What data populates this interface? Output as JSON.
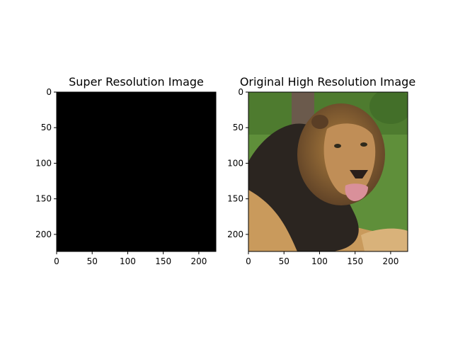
{
  "chart_data": [
    {
      "type": "heatmap",
      "title": "Super Resolution Image",
      "content": "blank",
      "image_size": [
        224,
        224
      ],
      "fill_color": "#000000",
      "xlim": [
        0,
        224
      ],
      "ylim": [
        224,
        0
      ],
      "xticks": [
        0,
        50,
        100,
        150,
        200
      ],
      "yticks": [
        0,
        50,
        100,
        150,
        200
      ],
      "xtick_labels": [
        "0",
        "50",
        "100",
        "150",
        "200"
      ],
      "ytick_labels": [
        "0",
        "50",
        "100",
        "150",
        "200"
      ]
    },
    {
      "type": "heatmap",
      "title": "Original High Resolution Image",
      "content": "lion photograph",
      "image_size": [
        224,
        224
      ],
      "xlim": [
        0,
        224
      ],
      "ylim": [
        224,
        0
      ],
      "xticks": [
        0,
        50,
        100,
        150,
        200
      ],
      "yticks": [
        0,
        50,
        100,
        150,
        200
      ],
      "xtick_labels": [
        "0",
        "50",
        "100",
        "150",
        "200"
      ],
      "ytick_labels": [
        "0",
        "50",
        "100",
        "150",
        "200"
      ],
      "palette": {
        "grass": "#5f8f3a",
        "grass_dark": "#3f6b27",
        "trunk": "#6b5a4c",
        "mane_dark": "#2b2520",
        "mane_mid": "#5a3e25",
        "mane_gold": "#b0803f",
        "fur": "#c99a5c",
        "fur_light": "#d9b27a",
        "face": "#c08e57",
        "nose": "#2a1f1a",
        "tongue": "#d9909a",
        "eye": "#2f2a1c"
      }
    }
  ]
}
